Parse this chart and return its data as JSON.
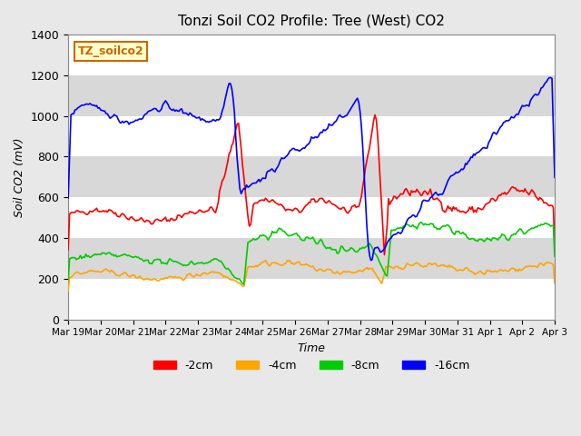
{
  "title": "Tonzi Soil CO2 Profile: Tree (West) CO2",
  "ylabel": "Soil CO2 (mV)",
  "xlabel": "Time",
  "annotation": "TZ_soilco2",
  "ylim": [
    0,
    1400
  ],
  "legend_labels": [
    "-2cm",
    "-4cm",
    "-8cm",
    "-16cm"
  ],
  "legend_colors": [
    "#ff0000",
    "#ffa500",
    "#00cc00",
    "#0000ff"
  ],
  "bg_color": "#e8e8e8",
  "plot_bg_color": "#e8e8e8",
  "grid_color": "#ffffff",
  "tick_labels": [
    "Mar 19",
    "Mar 20",
    "Mar 21",
    "Mar 22",
    "Mar 23",
    "Mar 24",
    "Mar 25",
    "Mar 26",
    "Mar 27",
    "Mar 28",
    "Mar 29",
    "Mar 30",
    "Mar 31",
    "Apr 1",
    "Apr 2",
    "Apr 3"
  ]
}
